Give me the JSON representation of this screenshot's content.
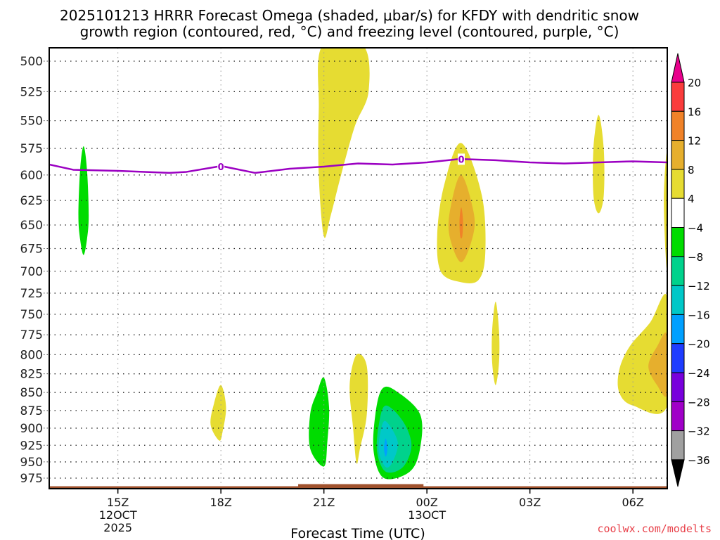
{
  "chart_data": {
    "type": "heatmap",
    "title_line1": "2025101213 HRRR Forecast Omega (shaded, μbar/s) for KFDY with dendritic snow",
    "title_line2": "growth region (contoured, red, °C) and freezing level (contoured, purple, °C)",
    "xlabel": "Forecast Time (UTC)",
    "ylabel": "",
    "credit": "coolwx.com/modelts",
    "x_range_hours": [
      13.0,
      31.0
    ],
    "x_ticks": [
      {
        "hour": 15,
        "label": "15Z",
        "sub1": "12OCT",
        "sub2": "2025"
      },
      {
        "hour": 18,
        "label": "18Z",
        "sub1": "",
        "sub2": ""
      },
      {
        "hour": 21,
        "label": "21Z",
        "sub1": "",
        "sub2": ""
      },
      {
        "hour": 24,
        "label": "00Z",
        "sub1": "13OCT",
        "sub2": ""
      },
      {
        "hour": 27,
        "label": "03Z",
        "sub1": "",
        "sub2": ""
      },
      {
        "hour": 30,
        "label": "06Z",
        "sub1": "",
        "sub2": ""
      }
    ],
    "y_scale": "log-pressure",
    "y_range_hpa": [
      488,
      985
    ],
    "y_ticks": [
      500,
      525,
      550,
      575,
      600,
      625,
      650,
      675,
      700,
      725,
      750,
      775,
      800,
      825,
      850,
      875,
      900,
      925,
      950,
      975
    ],
    "grid": true,
    "colorbar": {
      "placement": "right",
      "levels": [
        20,
        16,
        12,
        8,
        4,
        -4,
        -8,
        -12,
        -16,
        -20,
        -24,
        -28,
        -32,
        -36
      ],
      "bins": [
        {
          "range": "> 20",
          "color": "#e8008c",
          "type": "arrow-up"
        },
        {
          "range": "16 to 20",
          "color": "#fa3c3c"
        },
        {
          "range": "12 to 16",
          "color": "#f08228"
        },
        {
          "range": "8 to 12",
          "color": "#e6af2d"
        },
        {
          "range": "4 to 8",
          "color": "#e6dc32"
        },
        {
          "range": "-4 to 4",
          "color": "#ffffff"
        },
        {
          "range": "-8 to -4",
          "color": "#00dc00"
        },
        {
          "range": "-12 to -8",
          "color": "#00d28c"
        },
        {
          "range": "-16 to -12",
          "color": "#00c8c8"
        },
        {
          "range": "-20 to -16",
          "color": "#00a0ff"
        },
        {
          "range": "-24 to -20",
          "color": "#1e3cff"
        },
        {
          "range": "-28 to -24",
          "color": "#7800dc"
        },
        {
          "range": "-32 to -28",
          "color": "#a000c8"
        },
        {
          "range": "-36 to -32",
          "color": "#a0a0a0"
        },
        {
          "range": "< -36",
          "color": "#000000",
          "type": "arrow-down"
        }
      ]
    },
    "freezing_level": {
      "color": "#9b00c2",
      "label": "0",
      "label_points": [
        {
          "hour": 18.0,
          "p": 592
        },
        {
          "hour": 25.0,
          "p": 585
        }
      ],
      "points": [
        {
          "hour": 13.0,
          "p": 590
        },
        {
          "hour": 13.7,
          "p": 595
        },
        {
          "hour": 15.0,
          "p": 596
        },
        {
          "hour": 16.5,
          "p": 598
        },
        {
          "hour": 17.0,
          "p": 597
        },
        {
          "hour": 17.9,
          "p": 592
        },
        {
          "hour": 18.1,
          "p": 592
        },
        {
          "hour": 19.0,
          "p": 598
        },
        {
          "hour": 20.0,
          "p": 594
        },
        {
          "hour": 21.0,
          "p": 592
        },
        {
          "hour": 22.0,
          "p": 589
        },
        {
          "hour": 23.0,
          "p": 590
        },
        {
          "hour": 24.0,
          "p": 588
        },
        {
          "hour": 24.9,
          "p": 585
        },
        {
          "hour": 25.1,
          "p": 585
        },
        {
          "hour": 26.0,
          "p": 586
        },
        {
          "hour": 27.0,
          "p": 588
        },
        {
          "hour": 28.0,
          "p": 589
        },
        {
          "hour": 29.0,
          "p": 588
        },
        {
          "hour": 30.0,
          "p": 587
        },
        {
          "hour": 31.0,
          "p": 588
        }
      ]
    },
    "terrain": {
      "color": "#a0522d",
      "surface_p": 980
    },
    "omega_regions": [
      {
        "name": "green-cell-14z",
        "value_bin": "-8 to -4",
        "color": "#00dc00",
        "outline": [
          [
            14.0,
            573
          ],
          [
            14.1,
            595
          ],
          [
            14.15,
            640
          ],
          [
            14.1,
            665
          ],
          [
            14.0,
            682
          ],
          [
            13.9,
            665
          ],
          [
            13.85,
            640
          ],
          [
            13.9,
            595
          ]
        ]
      },
      {
        "name": "yellow-plume-21z",
        "value_bin": "4 to 8",
        "color": "#e6dc32",
        "outline": [
          [
            20.95,
            488
          ],
          [
            22.15,
            488
          ],
          [
            22.3,
            525
          ],
          [
            21.9,
            555
          ],
          [
            21.5,
            600
          ],
          [
            21.2,
            640
          ],
          [
            21.0,
            662
          ],
          [
            20.85,
            600
          ],
          [
            20.85,
            540
          ]
        ]
      },
      {
        "name": "yellow-cell-18z",
        "value_bin": "4 to 8",
        "color": "#e6dc32",
        "outline": [
          [
            18.0,
            840
          ],
          [
            18.15,
            870
          ],
          [
            18.05,
            905
          ],
          [
            17.95,
            918
          ],
          [
            17.7,
            895
          ],
          [
            17.8,
            865
          ]
        ]
      },
      {
        "name": "green-cell-21z",
        "value_bin": "-8 to -4",
        "color": "#00dc00",
        "outline": [
          [
            21.0,
            830
          ],
          [
            21.15,
            870
          ],
          [
            21.1,
            920
          ],
          [
            21.0,
            957
          ],
          [
            20.6,
            930
          ],
          [
            20.6,
            880
          ],
          [
            20.8,
            850
          ]
        ]
      },
      {
        "name": "yellow-cell-2130z",
        "value_bin": "4 to 8",
        "color": "#e6dc32",
        "outline": [
          [
            21.95,
            800
          ],
          [
            22.25,
            815
          ],
          [
            22.25,
            880
          ],
          [
            22.05,
            930
          ],
          [
            21.95,
            952
          ],
          [
            21.85,
            900
          ],
          [
            21.75,
            840
          ]
        ]
      },
      {
        "name": "green-cell-23z",
        "value_bin": "-8 to -4",
        "color": "#00dc00",
        "outline": [
          [
            22.7,
            845
          ],
          [
            23.1,
            848
          ],
          [
            23.8,
            880
          ],
          [
            23.8,
            930
          ],
          [
            23.5,
            965
          ],
          [
            22.75,
            975
          ],
          [
            22.45,
            935
          ],
          [
            22.5,
            880
          ]
        ]
      },
      {
        "name": "teal-cell-23z",
        "value_bin": "-12 to -8",
        "color": "#00d28c",
        "outline": [
          [
            22.8,
            868
          ],
          [
            23.3,
            890
          ],
          [
            23.55,
            925
          ],
          [
            23.3,
            958
          ],
          [
            22.8,
            965
          ],
          [
            22.55,
            935
          ],
          [
            22.6,
            895
          ]
        ]
      },
      {
        "name": "cyan-cell-23z",
        "value_bin": "-16 to -12",
        "color": "#00c8c8",
        "outline": [
          [
            22.8,
            890
          ],
          [
            23.15,
            920
          ],
          [
            23.0,
            950
          ],
          [
            22.8,
            958
          ],
          [
            22.6,
            935
          ],
          [
            22.65,
            905
          ]
        ]
      },
      {
        "name": "blue-core-23z",
        "value_bin": "-20 to -16",
        "color": "#00a0ff",
        "outline": [
          [
            22.8,
            915
          ],
          [
            22.85,
            930
          ],
          [
            22.8,
            942
          ],
          [
            22.75,
            930
          ]
        ]
      },
      {
        "name": "yellow-cell-01z",
        "value_bin": "4 to 8",
        "color": "#e6dc32",
        "outline": [
          [
            25.0,
            570
          ],
          [
            25.6,
            620
          ],
          [
            25.7,
            680
          ],
          [
            25.5,
            710
          ],
          [
            24.95,
            712
          ],
          [
            24.4,
            700
          ],
          [
            24.3,
            660
          ],
          [
            24.5,
            610
          ]
        ]
      },
      {
        "name": "gold-cell-01z",
        "value_bin": "8 to 12",
        "color": "#e6af2d",
        "outline": [
          [
            25.0,
            600
          ],
          [
            25.35,
            635
          ],
          [
            25.35,
            660
          ],
          [
            25.0,
            690
          ],
          [
            24.65,
            660
          ],
          [
            24.7,
            630
          ]
        ]
      },
      {
        "name": "orange-core-01z",
        "value_bin": "12 to 16",
        "color": "#f08228",
        "outline": [
          [
            25.0,
            632
          ],
          [
            25.05,
            645
          ],
          [
            25.03,
            662
          ],
          [
            24.97,
            662
          ],
          [
            24.95,
            645
          ]
        ]
      },
      {
        "name": "yellow-cell-02z",
        "value_bin": "4 to 8",
        "color": "#e6dc32",
        "outline": [
          [
            26.0,
            735
          ],
          [
            26.1,
            770
          ],
          [
            26.1,
            810
          ],
          [
            26.0,
            840
          ],
          [
            25.9,
            810
          ],
          [
            25.9,
            770
          ]
        ]
      },
      {
        "name": "yellow-cell-05z",
        "value_bin": "4 to 8",
        "color": "#e6dc32",
        "outline": [
          [
            29.0,
            545
          ],
          [
            29.15,
            575
          ],
          [
            29.15,
            620
          ],
          [
            29.0,
            638
          ],
          [
            28.85,
            620
          ],
          [
            28.85,
            575
          ]
        ]
      },
      {
        "name": "yellow-edge-07z",
        "value_bin": "4 to 8",
        "color": "#e6dc32",
        "outline": [
          [
            31.0,
            580
          ],
          [
            31.0,
            690
          ],
          [
            30.95,
            680
          ],
          [
            30.9,
            620
          ]
        ]
      },
      {
        "name": "yellow-cell-06z",
        "value_bin": "4 to 8",
        "color": "#e6dc32",
        "outline": [
          [
            31.0,
            730
          ],
          [
            31.0,
            868
          ],
          [
            30.0,
            868
          ],
          [
            29.6,
            850
          ],
          [
            29.6,
            820
          ],
          [
            29.9,
            790
          ],
          [
            30.5,
            760
          ]
        ]
      },
      {
        "name": "gold-cell-06z",
        "value_bin": "8 to 12",
        "color": "#e6af2d",
        "outline": [
          [
            31.0,
            775
          ],
          [
            31.0,
            852
          ],
          [
            30.7,
            840
          ],
          [
            30.45,
            815
          ],
          [
            30.7,
            790
          ]
        ]
      }
    ]
  }
}
